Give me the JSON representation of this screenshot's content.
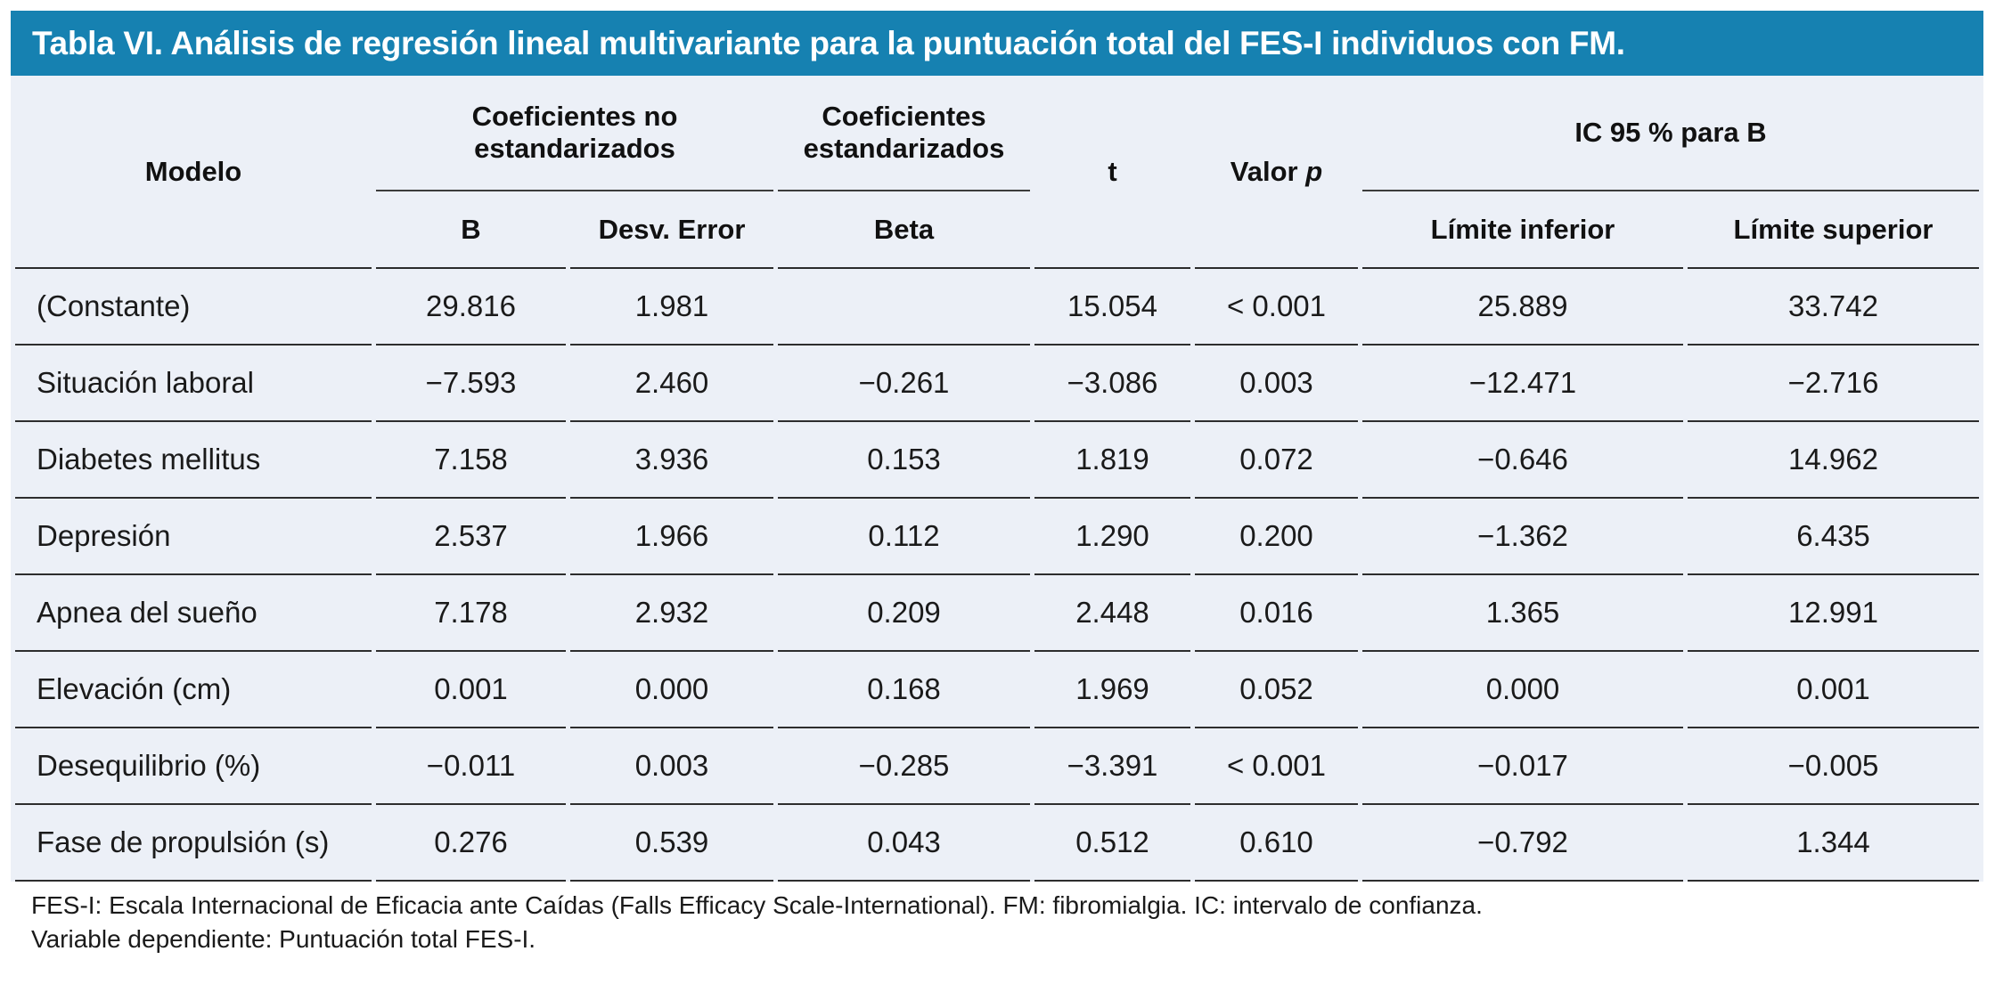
{
  "title": "Tabla VI. Análisis de regresión lineal multivariante para la puntuación total del FES-I individuos con FM.",
  "colors": {
    "title_bar_blue": "#1681B1",
    "table_background": "#ECF0F7",
    "rule_dark": "#2D2D2D",
    "title_text": "#FFFFFF"
  },
  "table": {
    "headers": {
      "modelo": "Modelo",
      "group_no_std": "Coeficientes no estandarizados",
      "group_std": "Coeficientes estandarizados",
      "t": "t",
      "valor": "Valor",
      "p": "p",
      "group_ic": "IC 95 % para B",
      "b": "B",
      "desv_error": "Desv. Error",
      "beta": "Beta",
      "limite_inferior": "Límite inferior",
      "limite_superior": "Límite superior"
    },
    "rows": [
      {
        "cells": [
          "(Constante)",
          "29.816",
          "1.981",
          "",
          "15.054",
          "< 0.001",
          "25.889",
          "33.742"
        ]
      },
      {
        "cells": [
          "Situación laboral",
          "−7.593",
          "2.460",
          "−0.261",
          "−3.086",
          "0.003",
          "−12.471",
          "−2.716"
        ]
      },
      {
        "cells": [
          "Diabetes mellitus",
          "7.158",
          "3.936",
          "0.153",
          "1.819",
          "0.072",
          "−0.646",
          "14.962"
        ]
      },
      {
        "cells": [
          "Depresión",
          "2.537",
          "1.966",
          "0.112",
          "1.290",
          "0.200",
          "−1.362",
          "6.435"
        ]
      },
      {
        "cells": [
          "Apnea del sueño",
          "7.178",
          "2.932",
          "0.209",
          "2.448",
          "0.016",
          "1.365",
          "12.991"
        ]
      },
      {
        "cells": [
          "Elevación (cm)",
          "0.001",
          "0.000",
          "0.168",
          "1.969",
          "0.052",
          "0.000",
          "0.001"
        ]
      },
      {
        "cells": [
          "Desequilibrio (%)",
          "−0.011",
          "0.003",
          "−0.285",
          "−3.391",
          "< 0.001",
          "−0.017",
          "−0.005"
        ]
      },
      {
        "cells": [
          "Fase de propulsión (s)",
          "0.276",
          "0.539",
          "0.043",
          "0.512",
          "0.610",
          "−0.792",
          "1.344"
        ]
      }
    ]
  },
  "footnotes": {
    "line1": "FES-I: Escala Internacional de Eficacia ante Caídas (Falls Efficacy Scale-International). FM: fibromialgia. IC: intervalo de confianza.",
    "line2": "Variable dependiente: Puntuación total FES-I."
  }
}
